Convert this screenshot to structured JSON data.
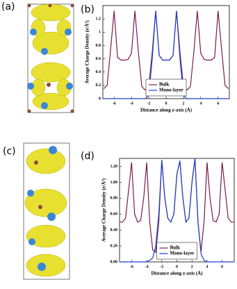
{
  "panel_labels": [
    "(a)",
    "(b)",
    "(c)",
    "(d)"
  ],
  "chart_data": [
    {
      "type": "line",
      "xlabel": "Distance along z-axis (Å)",
      "ylabel": "Average Charge Density (e/Å³)",
      "x": [
        -7.2,
        -6.8,
        -6.4,
        -6.0,
        -5.6,
        -5.2,
        -4.8,
        -4.4,
        -4.0,
        -3.6,
        -3.2,
        -2.8,
        -2.4,
        -2.0,
        -1.6,
        -1.2,
        -0.8,
        -0.4,
        0,
        0.4,
        0.8,
        1.2,
        1.6,
        2.0,
        2.4,
        2.8,
        3.2,
        3.6,
        4.0,
        4.4,
        4.8,
        5.2,
        5.6,
        6.0,
        6.4,
        6.8,
        7.2
      ],
      "series": [
        {
          "name": "Bulk",
          "color": "#7a1a48",
          "values": [
            0.15,
            0.2,
            0.75,
            1.32,
            0.62,
            0.58,
            0.58,
            0.59,
            0.68,
            1.32,
            0.7,
            0.18,
            0.13,
            0.18,
            0.7,
            1.32,
            0.65,
            0.58,
            0.58,
            0.58,
            0.65,
            1.32,
            0.7,
            0.18,
            0.13,
            0.18,
            0.7,
            1.32,
            0.68,
            0.59,
            0.58,
            0.58,
            0.62,
            1.32,
            0.75,
            0.2,
            0.15
          ]
        },
        {
          "name": "Mono-layer",
          "color": "#1f3fd0",
          "values": [
            0,
            0,
            0,
            0,
            0,
            0,
            0,
            0,
            0,
            0,
            0,
            0,
            0,
            0.05,
            0.6,
            1.32,
            0.65,
            0.58,
            0.58,
            0.58,
            0.65,
            1.32,
            0.6,
            0.05,
            0,
            0,
            0,
            0,
            0,
            0,
            0,
            0,
            0,
            0,
            0,
            0,
            0
          ]
        }
      ],
      "xlim": [
        -7.3,
        7.3
      ],
      "xticks": [
        -6,
        -4,
        -2,
        0,
        2,
        4,
        6
      ],
      "ylim": [
        0,
        1.4
      ],
      "yticks": [
        0,
        0.2,
        0.4,
        0.6,
        0.8,
        1,
        1.2
      ],
      "legend": "lower center"
    },
    {
      "type": "line",
      "xlabel": "Distance along z-axis (Å)",
      "ylabel": "Average Charge Density (e/Å³)",
      "x": [
        -7.6,
        -7.2,
        -6.8,
        -6.4,
        -6.0,
        -5.6,
        -5.2,
        -4.8,
        -4.4,
        -4.0,
        -3.6,
        -3.2,
        -2.8,
        -2.4,
        -2.0,
        -1.6,
        -1.2,
        -0.8,
        -0.4,
        0,
        0.4,
        0.8,
        1.2,
        1.6,
        2.0,
        2.4,
        2.8,
        3.2,
        3.6,
        4.0,
        4.4,
        4.8,
        5.2,
        5.6,
        6.0,
        6.4,
        6.8,
        7.2,
        7.6
      ],
      "series": [
        {
          "name": "Bulk",
          "color": "#7a1a48",
          "values": [
            0.5,
            0.5,
            0.55,
            0.9,
            1.25,
            0.6,
            0.5,
            0.52,
            0.8,
            1.25,
            0.5,
            0.15,
            0.12,
            0.5,
            1.28,
            0.8,
            0.55,
            0.5,
            0.6,
            1.1,
            1.27,
            0.8,
            0.5,
            0.55,
            1.0,
            1.3,
            0.5,
            0.13,
            0.5,
            1.25,
            0.8,
            0.52,
            0.5,
            0.6,
            1.25,
            0.9,
            0.55,
            0.5,
            0.5
          ]
        },
        {
          "name": "Mono-layer",
          "color": "#1f3fd0",
          "values": [
            0,
            0,
            0,
            0,
            0,
            0,
            0,
            0,
            0,
            0,
            0.02,
            0.05,
            0.2,
            0.6,
            1.28,
            0.8,
            0.55,
            0.5,
            0.6,
            1.1,
            1.27,
            0.8,
            0.5,
            0.55,
            1.0,
            1.3,
            0.5,
            0.1,
            0.02,
            0,
            0,
            0,
            0,
            0,
            0,
            0,
            0,
            0,
            0
          ]
        }
      ],
      "xlim": [
        -7.6,
        7.6
      ],
      "xticks": [
        -6,
        -4,
        -2,
        0,
        2,
        4,
        6
      ],
      "ylim": [
        0,
        1.3
      ],
      "yticks": [
        {
          "value": 0,
          "label": "0.00"
        },
        {
          "value": 0.2,
          "label": "0.20"
        },
        {
          "value": 0.4,
          "label": "0.40"
        },
        {
          "value": 0.6,
          "label": "0.60"
        },
        {
          "value": 0.8,
          "label": "0.80"
        },
        {
          "value": 1,
          "label": "1.00"
        },
        {
          "value": 1.2,
          "label": "1.20"
        }
      ],
      "legend": "lower center"
    }
  ]
}
